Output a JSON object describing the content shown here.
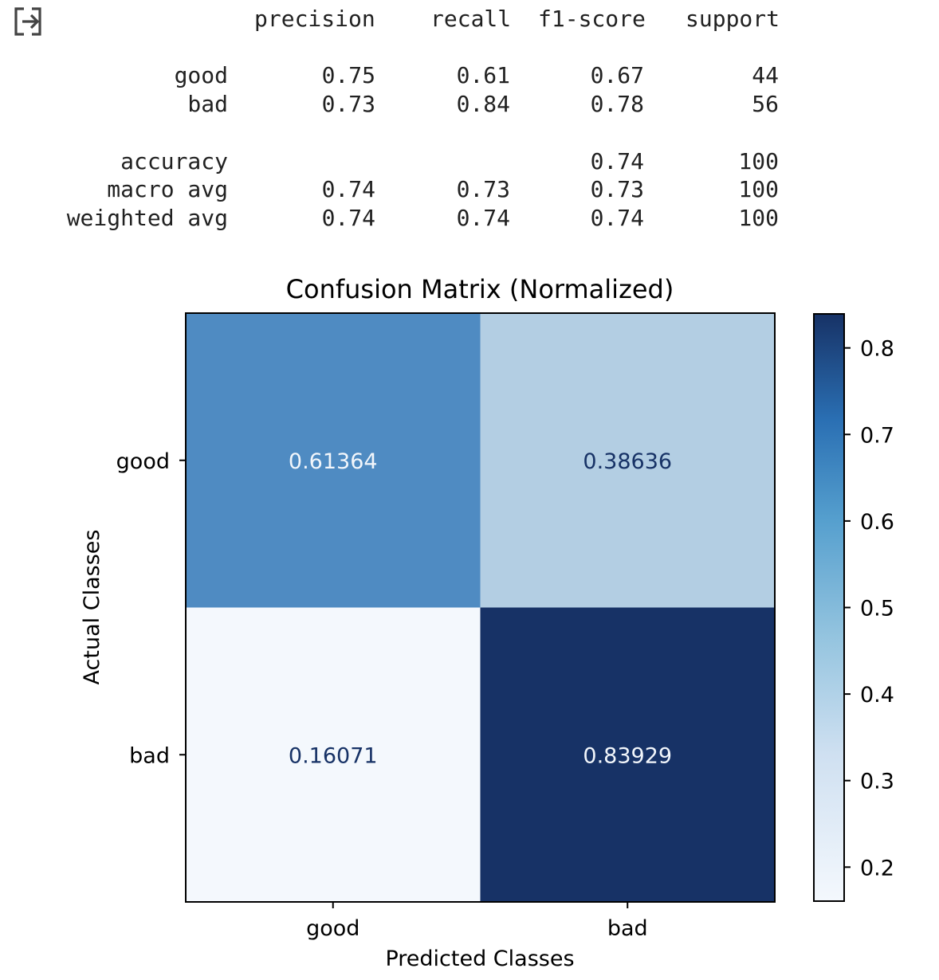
{
  "report": {
    "columns": [
      "precision",
      "recall",
      "f1-score",
      "support"
    ],
    "rows": [
      {
        "label": "good",
        "values": [
          "0.75",
          "0.61",
          "0.67",
          "44"
        ]
      },
      {
        "label": "bad",
        "values": [
          "0.73",
          "0.84",
          "0.78",
          "56"
        ]
      },
      {
        "label": "accuracy",
        "values": [
          "",
          "",
          "0.74",
          "100"
        ]
      },
      {
        "label": "macro avg",
        "values": [
          "0.74",
          "0.73",
          "0.73",
          "100"
        ]
      },
      {
        "label": "weighted avg",
        "values": [
          "0.74",
          "0.74",
          "0.74",
          "100"
        ]
      }
    ]
  },
  "icons": {
    "output": "output-redirect-icon"
  },
  "chart_data": {
    "type": "heatmap",
    "title": "Confusion Matrix (Normalized)",
    "xlabel": "Predicted Classes",
    "ylabel": "Actual Classes",
    "x_categories": [
      "good",
      "bad"
    ],
    "y_categories": [
      "good",
      "bad"
    ],
    "values": [
      [
        0.61364,
        0.38636
      ],
      [
        0.16071,
        0.83929
      ]
    ],
    "value_labels": [
      [
        "0.61364",
        "0.38636"
      ],
      [
        "0.16071",
        "0.83929"
      ]
    ],
    "colormap": "Blues",
    "cell_colors": [
      [
        "#4f8bc2",
        "#b3cee3"
      ],
      [
        "#f4f8fd",
        "#173266"
      ]
    ],
    "cell_text_colors": [
      [
        "#f2f6fb",
        "#173266"
      ],
      [
        "#173266",
        "#f2f6fb"
      ]
    ],
    "colorbar": {
      "range": [
        0.16071,
        0.83929
      ],
      "ticks": [
        0.2,
        0.3,
        0.4,
        0.5,
        0.6,
        0.7,
        0.8
      ],
      "tick_labels": [
        "0.2",
        "0.3",
        "0.4",
        "0.5",
        "0.6",
        "0.7",
        "0.8"
      ]
    }
  }
}
